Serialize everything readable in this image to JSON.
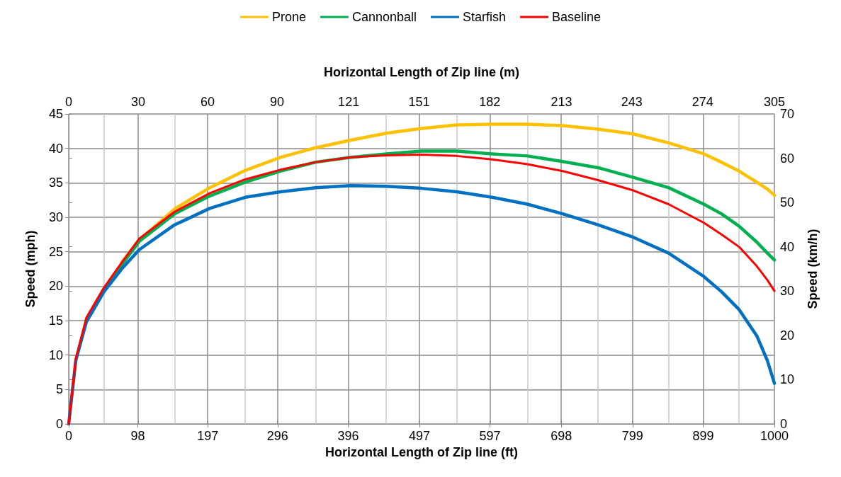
{
  "chart_data": {
    "type": "line",
    "xlabel": "Horizontal Length of Zip line (ft)",
    "x2label": "Horizontal Length of Zip line (m)",
    "ylabel": "Speed (mph)",
    "y2label": "Speed (km/h)",
    "x": [
      0,
      10,
      25,
      50,
      75,
      100,
      150,
      200,
      250,
      300,
      350,
      400,
      450,
      500,
      550,
      600,
      650,
      700,
      750,
      800,
      850,
      900,
      925,
      950,
      975,
      990,
      1000
    ],
    "series": [
      {
        "name": "Prone",
        "color": "#ffc000",
        "values": [
          null,
          null,
          null,
          null,
          23.4,
          26.7,
          31.2,
          34.3,
          36.8,
          38.7,
          40.1,
          41.2,
          42.2,
          42.9,
          43.4,
          43.5,
          43.5,
          43.3,
          42.8,
          42.1,
          40.8,
          39.2,
          38.0,
          36.7,
          35.1,
          34.1,
          33.2
        ]
      },
      {
        "name": "Cannonball",
        "color": "#00b050",
        "values": [
          null,
          null,
          15.2,
          19.6,
          23.1,
          26.5,
          30.5,
          33.1,
          35.1,
          36.7,
          38.0,
          38.7,
          39.2,
          39.6,
          39.6,
          39.2,
          38.9,
          38.1,
          37.2,
          35.8,
          34.3,
          31.9,
          30.5,
          28.7,
          26.4,
          24.8,
          23.8
        ]
      },
      {
        "name": "Starfish",
        "color": "#0070c0",
        "values": [
          0,
          9.2,
          14.8,
          19.2,
          22.5,
          25.3,
          28.9,
          31.3,
          32.9,
          33.7,
          34.3,
          34.6,
          34.5,
          34.2,
          33.7,
          32.9,
          31.9,
          30.5,
          28.9,
          27.1,
          24.8,
          21.4,
          19.2,
          16.6,
          12.8,
          9.2,
          5.9
        ]
      },
      {
        "name": "Baseline",
        "color": "#ff0000",
        "values": [
          0,
          9.5,
          15.4,
          19.8,
          23.4,
          26.9,
          30.8,
          33.5,
          35.5,
          36.9,
          38.0,
          38.7,
          39.0,
          39.1,
          38.9,
          38.4,
          37.7,
          36.7,
          35.4,
          33.9,
          31.9,
          29.2,
          27.5,
          25.7,
          22.9,
          20.9,
          19.3
        ]
      }
    ],
    "xlim": [
      0,
      1000
    ],
    "xticks": [
      0,
      98,
      197,
      296,
      396,
      497,
      597,
      698,
      799,
      899,
      1000
    ],
    "x2lim": [
      0,
      305
    ],
    "x2ticks": [
      0,
      30,
      60,
      90,
      121,
      {
        "value": 151.4,
        "label": "151"
      },
      182,
      213,
      {
        "value": 243.4,
        "label": "243"
      },
      274,
      305
    ],
    "ylim": [
      0,
      45
    ],
    "yticks": [
      0,
      5,
      10,
      15,
      20,
      25,
      30,
      35,
      40,
      45
    ],
    "y2lim": [
      0,
      70
    ],
    "y2ticks": [
      0,
      10,
      20,
      30,
      40,
      50,
      60,
      70
    ],
    "grid": true,
    "legend": "top",
    "marker": "none",
    "line_style": "solid"
  }
}
